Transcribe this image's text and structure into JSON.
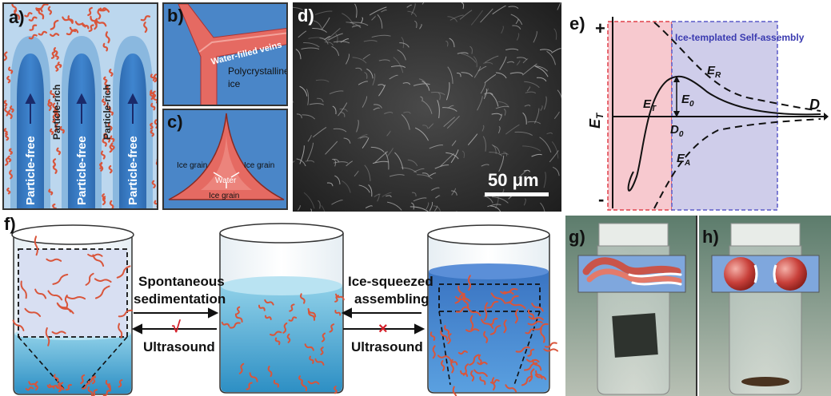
{
  "panel_a": {
    "label": "a)",
    "particle_free": "Particle-free",
    "particle_rich": "Particle-rich"
  },
  "panel_b": {
    "label": "b)",
    "veins": "Water-filled veins",
    "ice_line1": "Polycrystalline",
    "ice_line2": "ice"
  },
  "panel_c": {
    "label": "c)",
    "grain_left": "Ice grain",
    "grain_right": "Ice grain",
    "grain_bottom": "Ice grain",
    "water": "Water"
  },
  "panel_d": {
    "label": "d)",
    "scale_bar": "50 μm"
  },
  "panel_e": {
    "label": "e)",
    "plus": "+",
    "minus": "-",
    "region_title": "Ice-templated Self-assembly",
    "y_axis": "E",
    "y_axis_sub": "T",
    "x_axis": "D",
    "er": "E",
    "er_sub": "R",
    "et": "E",
    "et_sub": "T",
    "e0": "E",
    "e0_sub": "0",
    "d0": "D",
    "d0_sub": "0",
    "ea": "E",
    "ea_sub": "A",
    "colors": {
      "pink_region": "#f7c9cf",
      "blue_region": "#cfcdea",
      "pink_border": "#e0404a",
      "blue_border": "#5a5ac8"
    }
  },
  "panel_f": {
    "label": "f)",
    "left_top_1": "Spontaneous",
    "left_top_2": "sedimentation",
    "left_bottom": "Ultrasound",
    "right_top_1": "Ice-squeezed",
    "right_top_2": "assembling",
    "right_bottom": "Ultrasound",
    "check_mark": "√",
    "cross_mark": "×"
  },
  "panel_g": {
    "label": "g)"
  },
  "panel_h": {
    "label": "h)"
  }
}
